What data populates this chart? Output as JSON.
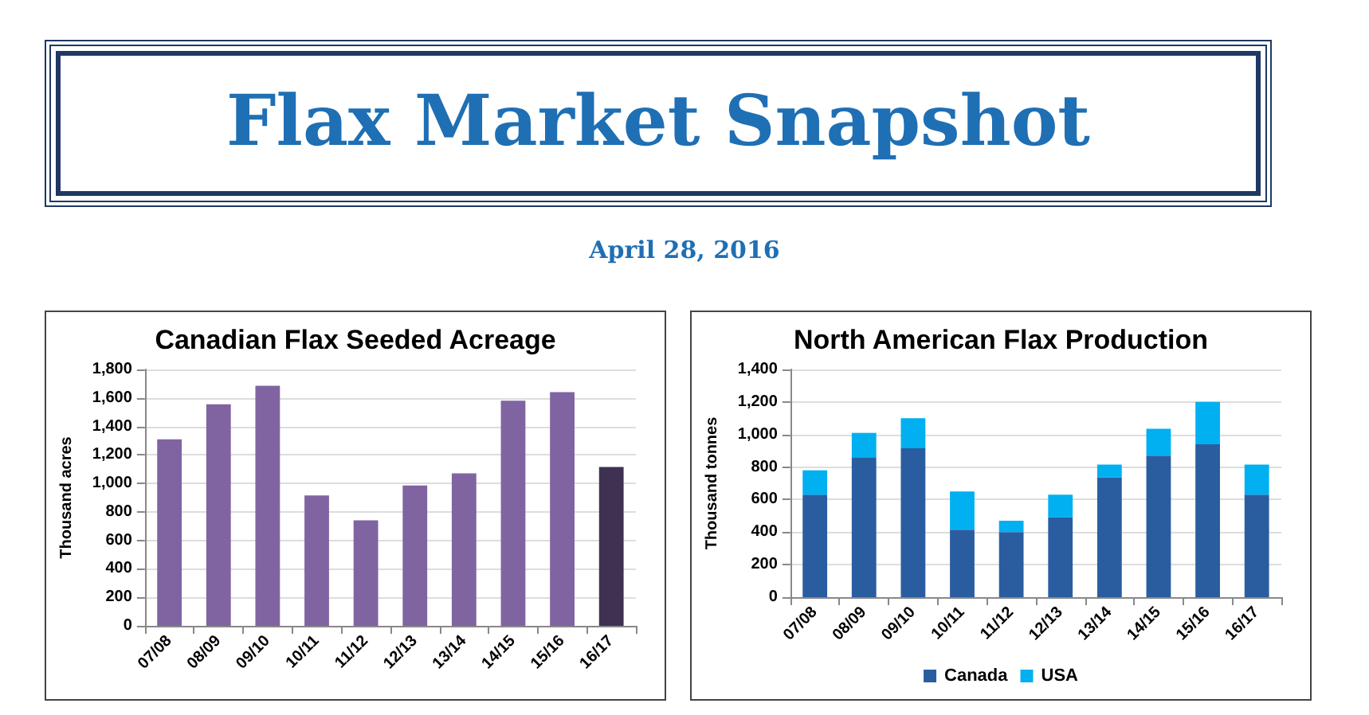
{
  "chart_data": [
    {
      "type": "other",
      "title": "Flax Market Snapshot",
      "subtitle": "April 28, 2016"
    },
    {
      "type": "bar",
      "title": "Canadian Flax Seeded Acreage",
      "ylabel": "Thousand acres",
      "categories": [
        "07/08",
        "08/09",
        "09/10",
        "10/11",
        "11/12",
        "12/13",
        "13/14",
        "14/15",
        "15/16",
        "16/17"
      ],
      "values": [
        1310,
        1555,
        1685,
        915,
        740,
        985,
        1070,
        1580,
        1640,
        1115
      ],
      "colors": [
        "#8064a2",
        "#8064a2",
        "#8064a2",
        "#8064a2",
        "#8064a2",
        "#8064a2",
        "#8064a2",
        "#8064a2",
        "#8064a2",
        "#3f3151"
      ],
      "ylim": [
        0,
        1800
      ],
      "yticks": [
        0,
        200,
        400,
        600,
        800,
        {
          "value": 1000,
          "label": "1,000"
        },
        {
          "value": 1200,
          "label": "1,200"
        },
        {
          "value": 1400,
          "label": "1,400"
        },
        {
          "value": 1600,
          "label": "1,600"
        },
        {
          "value": 1800,
          "label": "1,800"
        }
      ],
      "grid": "y",
      "legend": false
    },
    {
      "type": "bar",
      "title": "North American Flax Production",
      "ylabel": "Thousand tonnes",
      "stacked": true,
      "categories": [
        "07/08",
        "08/09",
        "09/10",
        "10/11",
        "11/12",
        "12/13",
        "13/14",
        "14/15",
        "15/16",
        "16/17"
      ],
      "series": [
        {
          "name": "Canada",
          "color": "#2a5d9f",
          "values": [
            630,
            860,
            915,
            415,
            400,
            490,
            735,
            870,
            940,
            630
          ]
        },
        {
          "name": "USA",
          "color": "#00b0f0",
          "values": [
            150,
            150,
            185,
            235,
            70,
            140,
            80,
            165,
            260,
            185
          ]
        }
      ],
      "ylim": [
        0,
        1400
      ],
      "yticks": [
        0,
        200,
        400,
        600,
        800,
        {
          "value": 1000,
          "label": "1,000"
        },
        {
          "value": 1200,
          "label": "1,200"
        },
        {
          "value": 1400,
          "label": "1,400"
        }
      ],
      "grid": "y",
      "legend": "bottom"
    }
  ]
}
